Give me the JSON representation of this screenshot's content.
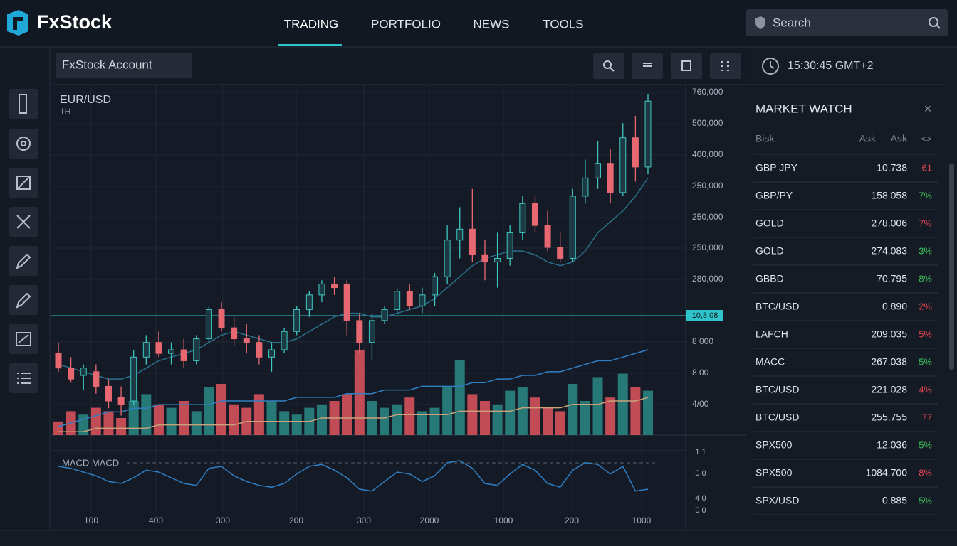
{
  "header": {
    "logo": "FxStock",
    "nav": [
      "TRADING",
      "PORTFOLIO",
      "NEWS",
      "TOOLS"
    ],
    "search": "Search"
  },
  "toolbar": {
    "account": "FxStock Account"
  },
  "clock": "15:30:45 GMT+2",
  "chart": {
    "symbol": "EUR/USD",
    "interval": "1H",
    "y_labels": [
      "760,000",
      "500,000",
      "400,000",
      "250,000",
      "250,000",
      "250,000",
      "280,000",
      "8 000",
      "8 00",
      "4/00"
    ],
    "price_tag": "10,3.08",
    "x_labels": [
      "100",
      "400",
      "300",
      "200",
      "300",
      "2000",
      "1000",
      "200",
      "1000"
    ],
    "macd_label": "MACD MACD",
    "macd_labels": [
      "1 1",
      "0 0",
      "4 0",
      "0 0"
    ],
    "up_color": "#2a8a86",
    "down_color": "#e0555f",
    "candles": [
      [
        27,
        30,
        22,
        23
      ],
      [
        23,
        26,
        19,
        20
      ],
      [
        21,
        24,
        17,
        23
      ],
      [
        22,
        24,
        16,
        18
      ],
      [
        18,
        20,
        12,
        14
      ],
      [
        15,
        18,
        10,
        13
      ],
      [
        14,
        28,
        13,
        26
      ],
      [
        26,
        32,
        24,
        30
      ],
      [
        30,
        33,
        26,
        27
      ],
      [
        27,
        30,
        24,
        28
      ],
      [
        28,
        31,
        23,
        25
      ],
      [
        25,
        32,
        24,
        31
      ],
      [
        31,
        40,
        30,
        39
      ],
      [
        39,
        41,
        33,
        34
      ],
      [
        34,
        37,
        29,
        31
      ],
      [
        31,
        35,
        27,
        30
      ],
      [
        30,
        32,
        24,
        26
      ],
      [
        26,
        30,
        22,
        28
      ],
      [
        28,
        34,
        27,
        33
      ],
      [
        33,
        40,
        32,
        39
      ],
      [
        39,
        44,
        37,
        43
      ],
      [
        43,
        47,
        41,
        46
      ],
      [
        46,
        48,
        43,
        45
      ],
      [
        46,
        47,
        32,
        36
      ],
      [
        36,
        38,
        27,
        30
      ],
      [
        30,
        38,
        25,
        36
      ],
      [
        36,
        40,
        35,
        39
      ],
      [
        39,
        45,
        38,
        44
      ],
      [
        44,
        46,
        39,
        40
      ],
      [
        40,
        45,
        38,
        43
      ],
      [
        43,
        49,
        40,
        48
      ],
      [
        48,
        62,
        46,
        58
      ],
      [
        58,
        67,
        53,
        61
      ],
      [
        61,
        72,
        52,
        54
      ],
      [
        54,
        58,
        47,
        52
      ],
      [
        52,
        60,
        45,
        53
      ],
      [
        53,
        62,
        51,
        60
      ],
      [
        60,
        70,
        58,
        68
      ],
      [
        68,
        70,
        60,
        62
      ],
      [
        62,
        66,
        55,
        56
      ],
      [
        56,
        60,
        52,
        53
      ],
      [
        53,
        72,
        52,
        70
      ],
      [
        70,
        80,
        68,
        75
      ],
      [
        75,
        85,
        72,
        79
      ],
      [
        79,
        83,
        68,
        71
      ],
      [
        71,
        90,
        70,
        86
      ],
      [
        86,
        92,
        74,
        78
      ],
      [
        78,
        98,
        76,
        96
      ]
    ],
    "volume": [
      4,
      7,
      6,
      8,
      7,
      5,
      10,
      12,
      9,
      8,
      10,
      7,
      14,
      15,
      9,
      8,
      12,
      10,
      7,
      6,
      8,
      9,
      10,
      12,
      25,
      10,
      8,
      9,
      11,
      7,
      8,
      14,
      22,
      12,
      10,
      9,
      13,
      14,
      11,
      8,
      7,
      15,
      10,
      17,
      11,
      18,
      14,
      13
    ],
    "ma_fast": [
      24,
      23,
      22,
      21,
      20,
      20,
      21,
      23,
      25,
      26,
      27,
      28,
      30,
      32,
      33,
      32,
      31,
      30,
      30,
      31,
      33,
      35,
      37,
      38,
      38,
      37,
      37,
      38,
      39,
      40,
      42,
      45,
      48,
      51,
      53,
      54,
      55,
      55,
      54,
      52,
      51,
      52,
      55,
      60,
      63,
      66,
      70,
      75
    ],
    "ma_slow": [
      7,
      8,
      9,
      10,
      11,
      11,
      12,
      12,
      13,
      13,
      13,
      13,
      13,
      14,
      14,
      14,
      14,
      14,
      14,
      15,
      15,
      15,
      15,
      16,
      16,
      16,
      17,
      17,
      17,
      18,
      18,
      18,
      18,
      19,
      19,
      20,
      20,
      21,
      21,
      22,
      22,
      23,
      24,
      25,
      25,
      26,
      27,
      28
    ],
    "volume_ma": [
      1,
      1,
      1,
      2,
      2,
      2,
      2,
      2,
      3,
      3,
      3,
      3,
      3,
      3,
      3,
      4,
      4,
      4,
      4,
      4,
      4,
      5,
      5,
      5,
      5,
      5,
      5,
      6,
      6,
      6,
      6,
      6,
      7,
      7,
      7,
      7,
      7,
      8,
      8,
      8,
      8,
      9,
      9,
      9,
      10,
      10,
      10,
      11
    ],
    "macd": [
      0.6,
      0.5,
      0.3,
      0.1,
      -0.2,
      -0.3,
      0,
      0.4,
      0.3,
      0,
      -0.3,
      -0.4,
      0.5,
      0.6,
      0.1,
      -0.2,
      -0.4,
      -0.5,
      -0.3,
      0.2,
      0.6,
      0.7,
      0.4,
      0,
      -0.6,
      -0.7,
      -0.2,
      0.3,
      0.2,
      -0.2,
      0.1,
      0.8,
      0.9,
      0.5,
      -0.3,
      -0.4,
      0.2,
      0.7,
      0.4,
      -0.3,
      -0.5,
      0.4,
      0.8,
      0.7,
      0.2,
      0.6,
      -0.7,
      -0.6
    ]
  },
  "market_watch": {
    "title": "MARKET WATCH",
    "columns": [
      "Bisk",
      "Ask",
      "Ask"
    ],
    "rows": [
      {
        "symbol": "GBP JPY",
        "price": "10.738",
        "change": "61",
        "color": "#e0454f"
      },
      {
        "symbol": "GBP/PY",
        "price": "158.058",
        "change": "7%",
        "color": "#3cc05a"
      },
      {
        "symbol": "GOLD",
        "price": "278.006",
        "change": "7%",
        "color": "#e0454f"
      },
      {
        "symbol": "GOLD",
        "price": "274.083",
        "change": "3%",
        "color": "#3cc05a"
      },
      {
        "symbol": "GBBD",
        "price": "70.795",
        "change": "8%",
        "color": "#3cc05a"
      },
      {
        "symbol": "BTC/USD",
        "price": "0.890",
        "change": "2%",
        "color": "#e0454f"
      },
      {
        "symbol": "LAFCH",
        "price": "209.035",
        "change": "5%",
        "color": "#e0454f"
      },
      {
        "symbol": "MACC",
        "price": "267.038",
        "change": "5%",
        "color": "#3cc05a"
      },
      {
        "symbol": "BTC/USD",
        "price": "221.028",
        "change": "4%",
        "color": "#e0454f"
      },
      {
        "symbol": "BTC/USD",
        "price": "255.755",
        "change": "77",
        "color": "#e0454f"
      },
      {
        "symbol": "SPX500",
        "price": "12.036",
        "change": "5%",
        "color": "#3cc05a"
      },
      {
        "symbol": "SPX500",
        "price": "1084.700",
        "change": "8%",
        "color": "#e0454f"
      },
      {
        "symbol": "SPX/USD",
        "price": "0.885",
        "change": "5%",
        "color": "#3cc05a"
      }
    ]
  }
}
